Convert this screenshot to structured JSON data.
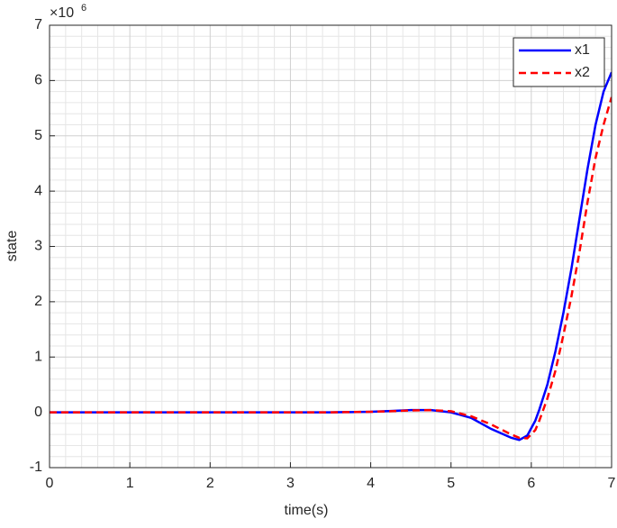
{
  "chart_data": {
    "type": "line",
    "xlabel": "time(s)",
    "ylabel": "state",
    "y_multiplier": {
      "base": "×10",
      "exponent": "6"
    },
    "x": [
      0,
      0.5,
      1,
      1.5,
      2,
      2.5,
      3,
      3.5,
      3.75,
      4,
      4.25,
      4.5,
      4.75,
      5,
      5.25,
      5.5,
      5.75,
      5.85,
      5.95,
      6.05,
      6.1,
      6.2,
      6.3,
      6.4,
      6.5,
      6.6,
      6.7,
      6.8,
      6.9,
      7
    ],
    "series": [
      {
        "name": "x1",
        "color": "#0000ff",
        "dash": "solid",
        "values": [
          0,
          0,
          0,
          0,
          0,
          0,
          0,
          0,
          0.005,
          0.01,
          0.025,
          0.04,
          0.04,
          0,
          -0.1,
          -0.3,
          -0.46,
          -0.5,
          -0.42,
          -0.15,
          0.05,
          0.5,
          1.1,
          1.8,
          2.6,
          3.5,
          4.4,
          5.2,
          5.8,
          6.15
        ]
      },
      {
        "name": "x2",
        "color": "#ff0000",
        "dash": "dashed",
        "values": [
          0,
          0,
          0,
          0,
          0,
          0,
          0,
          0,
          0.005,
          0.01,
          0.02,
          0.035,
          0.04,
          0.02,
          -0.07,
          -0.22,
          -0.4,
          -0.46,
          -0.47,
          -0.32,
          -0.15,
          0.25,
          0.75,
          1.4,
          2.1,
          2.9,
          3.8,
          4.6,
          5.2,
          5.7
        ]
      }
    ],
    "xlim": [
      0,
      7
    ],
    "xticks": [
      0,
      1,
      2,
      3,
      4,
      5,
      6,
      7
    ],
    "ylim": [
      -1,
      7
    ],
    "yticks": [
      -1,
      0,
      1,
      2,
      3,
      4,
      5,
      6,
      7
    ],
    "grid": true,
    "minor_grid": true,
    "legend": "northeast"
  }
}
